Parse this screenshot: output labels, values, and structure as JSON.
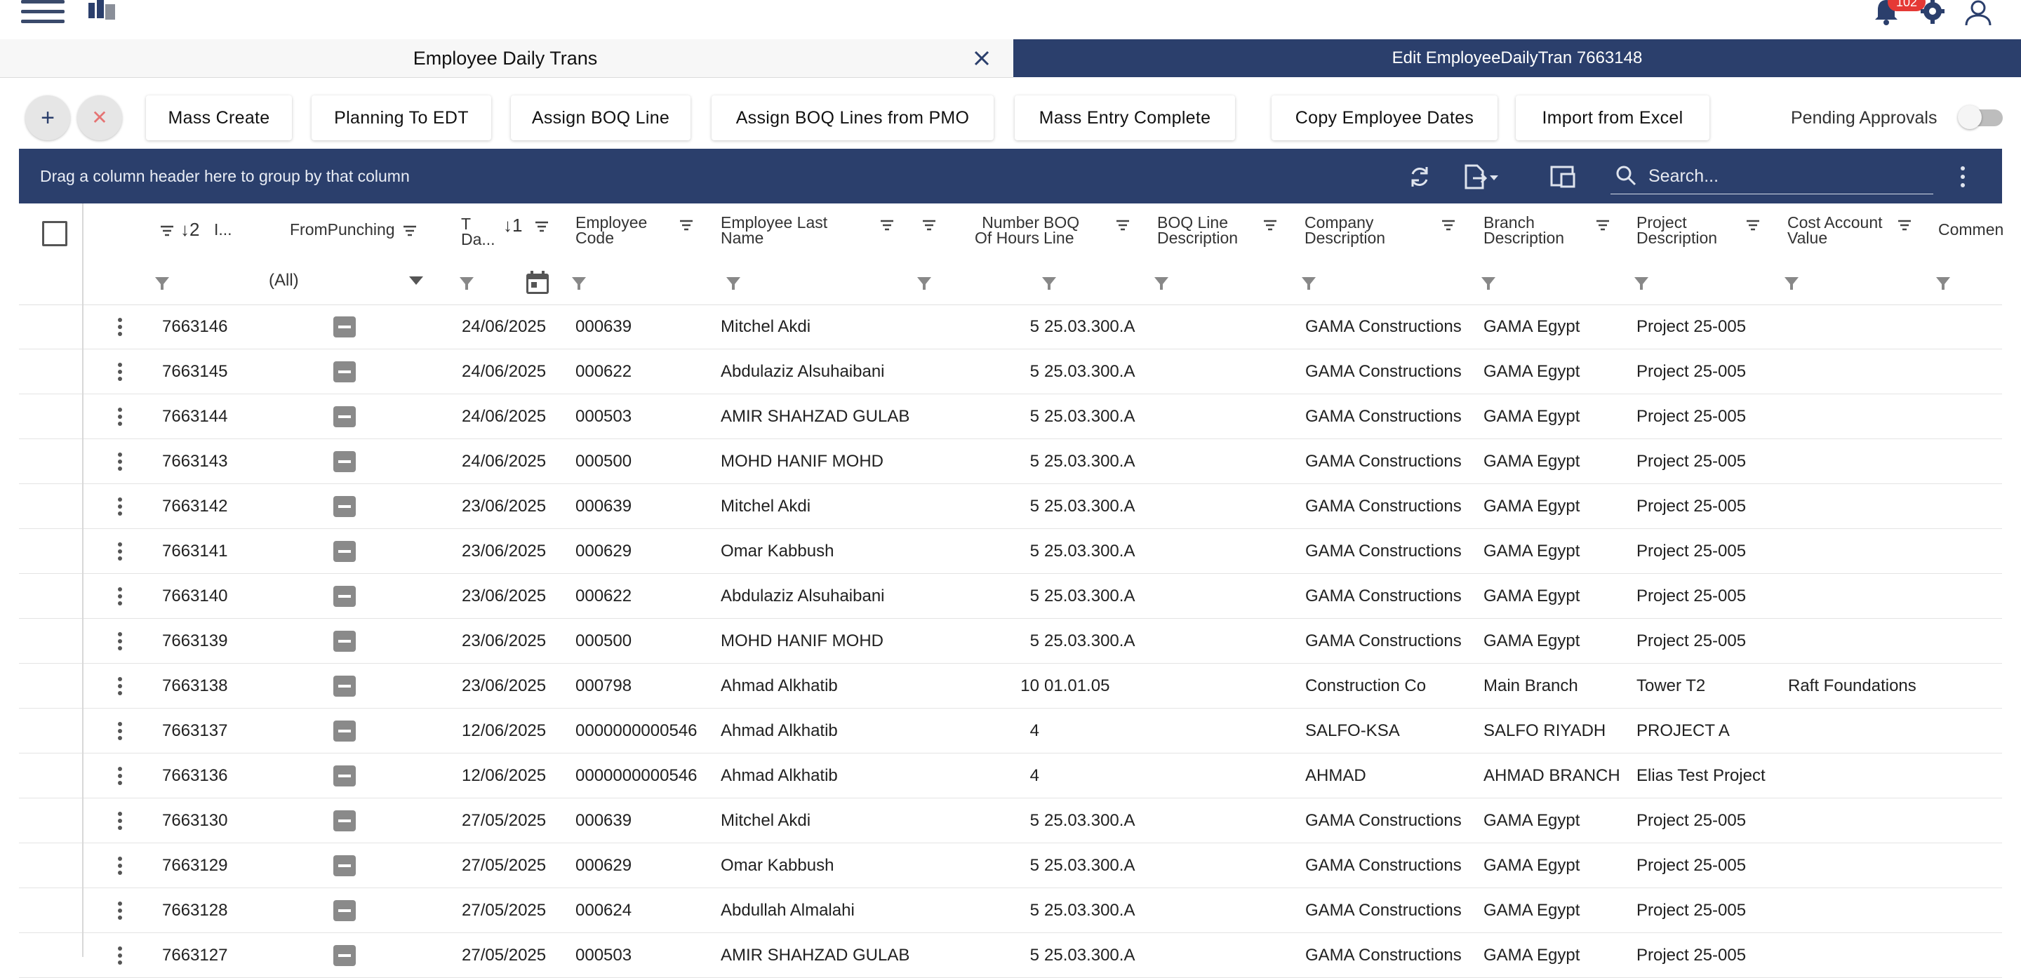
{
  "app": {
    "notification_count": "102",
    "icons": [
      "hamburger-icon",
      "logo-icon",
      "bell-icon",
      "gear-icon",
      "user-icon"
    ]
  },
  "tabs": {
    "left_title": "Employee Daily Trans",
    "right_title": "Edit EmployeeDailyTran  7663148"
  },
  "toolbar": {
    "add_label": "+",
    "cancel_label": "✕",
    "buttons": [
      "Mass Create",
      "Planning To EDT",
      "Assign BOQ Line",
      "Assign BOQ Lines from PMO",
      "Mass Entry Complete",
      "Copy Employee Dates",
      "Import from Excel"
    ],
    "pending_label": "Pending Approvals",
    "pending_on": false
  },
  "grid": {
    "group_hint": "Drag a column header here to group by that column",
    "search_placeholder": "Search...",
    "headers": {
      "id_sort": "↓2",
      "id": "I...",
      "from_punching": "FromPunching",
      "date_t": "T",
      "date_da": "Da...",
      "date_sort": "↓1",
      "emp_code_1": "Employee",
      "emp_code_2": "Code",
      "emp_last_1": "Employee Last",
      "emp_last_2": "Name",
      "hours_1": "Number",
      "hours_2": "Of Hours",
      "boq_1": "BOQ",
      "boq_2": "Line",
      "boq_desc_1": "BOQ Line",
      "boq_desc_2": "Description",
      "company_1": "Company",
      "company_2": "Description",
      "branch_1": "Branch",
      "branch_2": "Description",
      "project_1": "Project",
      "project_2": "Description",
      "cost_1": "Cost Account",
      "cost_2": "Value",
      "comment": "Commen"
    },
    "punching_filter": "(All)",
    "rows": [
      {
        "id": "7663146",
        "date": "24/06/2025",
        "code": "000639",
        "name": "Mitchel Akdi",
        "hours": "5",
        "boq": "25.03.300.A",
        "company": "GAMA Constructions",
        "branch": "GAMA Egypt",
        "project": "Project 25-005",
        "cost": ""
      },
      {
        "id": "7663145",
        "date": "24/06/2025",
        "code": "000622",
        "name": "Abdulaziz Alsuhaibani",
        "hours": "5",
        "boq": "25.03.300.A",
        "company": "GAMA Constructions",
        "branch": "GAMA Egypt",
        "project": "Project 25-005",
        "cost": ""
      },
      {
        "id": "7663144",
        "date": "24/06/2025",
        "code": "000503",
        "name": "AMIR SHAHZAD GULAB",
        "hours": "5",
        "boq": "25.03.300.A",
        "company": "GAMA Constructions",
        "branch": "GAMA Egypt",
        "project": "Project 25-005",
        "cost": ""
      },
      {
        "id": "7663143",
        "date": "24/06/2025",
        "code": "000500",
        "name": "MOHD HANIF MOHD",
        "hours": "5",
        "boq": "25.03.300.A",
        "company": "GAMA Constructions",
        "branch": "GAMA Egypt",
        "project": "Project 25-005",
        "cost": ""
      },
      {
        "id": "7663142",
        "date": "23/06/2025",
        "code": "000639",
        "name": "Mitchel Akdi",
        "hours": "5",
        "boq": "25.03.300.A",
        "company": "GAMA Constructions",
        "branch": "GAMA Egypt",
        "project": "Project 25-005",
        "cost": ""
      },
      {
        "id": "7663141",
        "date": "23/06/2025",
        "code": "000629",
        "name": "Omar Kabbush",
        "hours": "5",
        "boq": "25.03.300.A",
        "company": "GAMA Constructions",
        "branch": "GAMA Egypt",
        "project": "Project 25-005",
        "cost": ""
      },
      {
        "id": "7663140",
        "date": "23/06/2025",
        "code": "000622",
        "name": "Abdulaziz Alsuhaibani",
        "hours": "5",
        "boq": "25.03.300.A",
        "company": "GAMA Constructions",
        "branch": "GAMA Egypt",
        "project": "Project 25-005",
        "cost": ""
      },
      {
        "id": "7663139",
        "date": "23/06/2025",
        "code": "000500",
        "name": "MOHD HANIF MOHD",
        "hours": "5",
        "boq": "25.03.300.A",
        "company": "GAMA Constructions",
        "branch": "GAMA Egypt",
        "project": "Project 25-005",
        "cost": ""
      },
      {
        "id": "7663138",
        "date": "23/06/2025",
        "code": "000798",
        "name": "Ahmad Alkhatib",
        "hours": "10",
        "boq": "01.01.05",
        "company": "Construction Co",
        "branch": "Main Branch",
        "project": "Tower T2",
        "cost": "Raft Foundations"
      },
      {
        "id": "7663137",
        "date": "12/06/2025",
        "code": "0000000000546",
        "name": "Ahmad Alkhatib",
        "hours": "4",
        "boq": "",
        "company": "SALFO-KSA",
        "branch": "SALFO RIYADH",
        "project": "PROJECT A",
        "cost": ""
      },
      {
        "id": "7663136",
        "date": "12/06/2025",
        "code": "0000000000546",
        "name": "Ahmad Alkhatib",
        "hours": "4",
        "boq": "",
        "company": "AHMAD",
        "branch": "AHMAD BRANCH",
        "project": "Elias Test Project",
        "cost": ""
      },
      {
        "id": "7663130",
        "date": "27/05/2025",
        "code": "000639",
        "name": "Mitchel Akdi",
        "hours": "5",
        "boq": "25.03.300.A",
        "company": "GAMA Constructions",
        "branch": "GAMA Egypt",
        "project": "Project 25-005",
        "cost": ""
      },
      {
        "id": "7663129",
        "date": "27/05/2025",
        "code": "000629",
        "name": "Omar Kabbush",
        "hours": "5",
        "boq": "25.03.300.A",
        "company": "GAMA Constructions",
        "branch": "GAMA Egypt",
        "project": "Project 25-005",
        "cost": ""
      },
      {
        "id": "7663128",
        "date": "27/05/2025",
        "code": "000624",
        "name": "Abdullah Almalahi",
        "hours": "5",
        "boq": "25.03.300.A",
        "company": "GAMA Constructions",
        "branch": "GAMA Egypt",
        "project": "Project 25-005",
        "cost": ""
      },
      {
        "id": "7663127",
        "date": "27/05/2025",
        "code": "000503",
        "name": "AMIR SHAHZAD GULAB",
        "hours": "5",
        "boq": "25.03.300.A",
        "company": "GAMA Constructions",
        "branch": "GAMA Egypt",
        "project": "Project 25-005",
        "cost": ""
      }
    ]
  },
  "colors": {
    "primary": "#2b3f6c",
    "badge": "#e53935"
  }
}
